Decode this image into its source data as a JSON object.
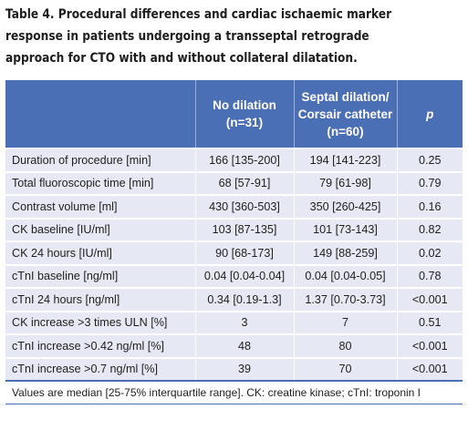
{
  "caption": {
    "line1": "Table 4. Procedural differences and cardiac ischaemic marker",
    "line2": "response in patients undergoing a transseptal retrograde",
    "line3": "approach for CTO with and without collateral dilatation."
  },
  "table": {
    "headers": {
      "col0": "",
      "col1_line1": "No dilation",
      "col1_line2": "(n=31)",
      "col2_line1": "Septal dilation/",
      "col2_line2": "Corsair catheter",
      "col2_line3": "(n=60)",
      "col3": "p"
    },
    "rows": [
      [
        "Duration of procedure [min]",
        "166 [135-200]",
        "194 [141-223]",
        "0.25"
      ],
      [
        "Total fluoroscopic time [min]",
        "68 [57-91]",
        "79 [61-98]",
        "0.79"
      ],
      [
        "Contrast volume [ml]",
        "430 [360-503]",
        "350 [260-425]",
        "0.16"
      ],
      [
        "CK baseline [IU/ml]",
        "103 [87-135]",
        "101 [73-143]",
        "0.82"
      ],
      [
        "CK 24 hours [IU/ml]",
        "90 [68-173]",
        "149 [88-259]",
        "0.02"
      ],
      [
        "cTnI baseline [ng/ml]",
        "0.04 [0.04-0.04]",
        "0.04 [0.04-0.05]",
        "0.78"
      ],
      [
        "cTnI 24 hours [ng/ml]",
        "0.34 [0.19-1.3]",
        "1.37 [0.70-3.73]",
        "<0.001"
      ],
      [
        "CK increase >3 times ULN [%]",
        "3",
        "7",
        "0.51"
      ],
      [
        "cTnI increase >0.42 ng/ml [%]",
        "48",
        "80",
        "<0.001"
      ],
      [
        "cTnI increase >0.7 ng/ml [%]",
        "39",
        "70",
        "<0.001"
      ]
    ],
    "footnote": "Values are median [25-75% interquartile range]. CK: creatine kinase; cTnI: troponin I"
  }
}
